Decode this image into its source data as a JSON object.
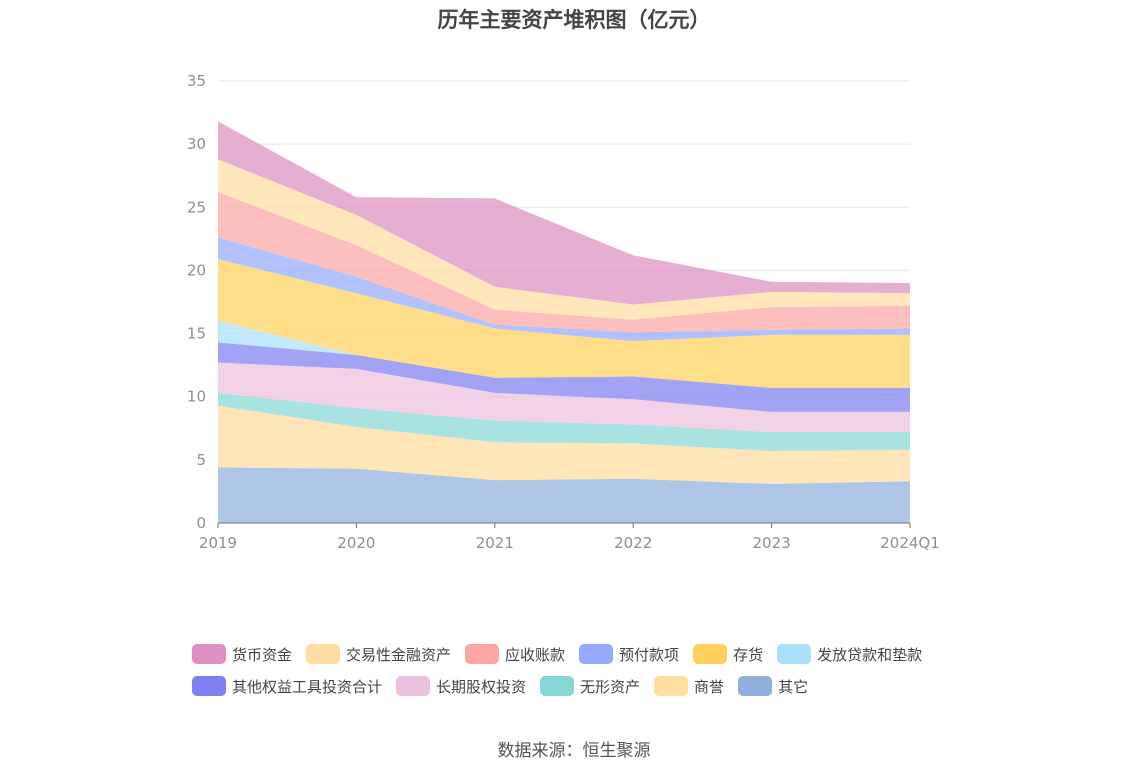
{
  "chart_data": {
    "type": "area",
    "stacked": true,
    "title": "历年主要资产堆积图（亿元）",
    "categories": [
      "2019",
      "2020",
      "2021",
      "2022",
      "2023",
      "2024Q1"
    ],
    "ylim": [
      0,
      35
    ],
    "yticks": [
      "0",
      "5",
      "10",
      "15",
      "20",
      "25",
      "30",
      "35"
    ],
    "grid": true,
    "legend_position": "bottom",
    "series": [
      {
        "name": "其它",
        "color": "#8eb0dd",
        "values": [
          4.4,
          4.3,
          3.4,
          3.5,
          3.1,
          3.3
        ]
      },
      {
        "name": "商誉",
        "color": "#ffdd9e",
        "values": [
          4.9,
          3.3,
          3.0,
          2.8,
          2.6,
          2.5
        ]
      },
      {
        "name": "无形资产",
        "color": "#86d8d6",
        "values": [
          1.0,
          1.5,
          1.7,
          1.5,
          1.5,
          1.4
        ]
      },
      {
        "name": "长期股权投资",
        "color": "#eec0df",
        "values": [
          2.4,
          3.1,
          2.2,
          2.0,
          1.6,
          1.6
        ]
      },
      {
        "name": "其他权益工具投资合计",
        "color": "#7f7ff2",
        "values": [
          1.6,
          1.1,
          1.2,
          1.8,
          1.9,
          1.9
        ]
      },
      {
        "name": "发放贷款和垫款",
        "color": "#a9e1fb",
        "values": [
          1.7,
          0.0,
          0.0,
          0.0,
          0.0,
          0.0
        ]
      },
      {
        "name": "存货",
        "color": "#ffd15c",
        "values": [
          4.9,
          4.9,
          3.9,
          2.8,
          4.2,
          4.2
        ]
      },
      {
        "name": "预付款项",
        "color": "#94abfd",
        "values": [
          1.7,
          1.3,
          0.3,
          0.7,
          0.4,
          0.5
        ]
      },
      {
        "name": "应收账款",
        "color": "#fba6a3",
        "values": [
          3.6,
          2.5,
          1.2,
          1.0,
          1.8,
          1.8
        ]
      },
      {
        "name": "交易性金融资产",
        "color": "#ffdca1",
        "values": [
          2.6,
          2.4,
          1.8,
          1.2,
          1.2,
          1.0
        ]
      },
      {
        "name": "货币资金",
        "color": "#de8fc3",
        "values": [
          3.0,
          1.4,
          7.0,
          3.9,
          0.8,
          0.8
        ]
      }
    ]
  },
  "legend": {
    "rows": [
      [
        {
          "name": "货币资金",
          "color": "#de8fc3"
        },
        {
          "name": "交易性金融资产",
          "color": "#ffdca1"
        },
        {
          "name": "应收账款",
          "color": "#fba6a3"
        },
        {
          "name": "预付款项",
          "color": "#94abfd"
        },
        {
          "name": "存货",
          "color": "#ffd15c"
        },
        {
          "name": "发放贷款和垫款",
          "color": "#a9e1fb"
        }
      ],
      [
        {
          "name": "其他权益工具投资合计",
          "color": "#7f7ff2"
        },
        {
          "name": "长期股权投资",
          "color": "#eec0df"
        },
        {
          "name": "无形资产",
          "color": "#86d8d6"
        },
        {
          "name": "商誉",
          "color": "#ffdd9e"
        },
        {
          "name": "其它",
          "color": "#8eb0dd"
        }
      ]
    ]
  },
  "source": "数据来源：恒生聚源"
}
